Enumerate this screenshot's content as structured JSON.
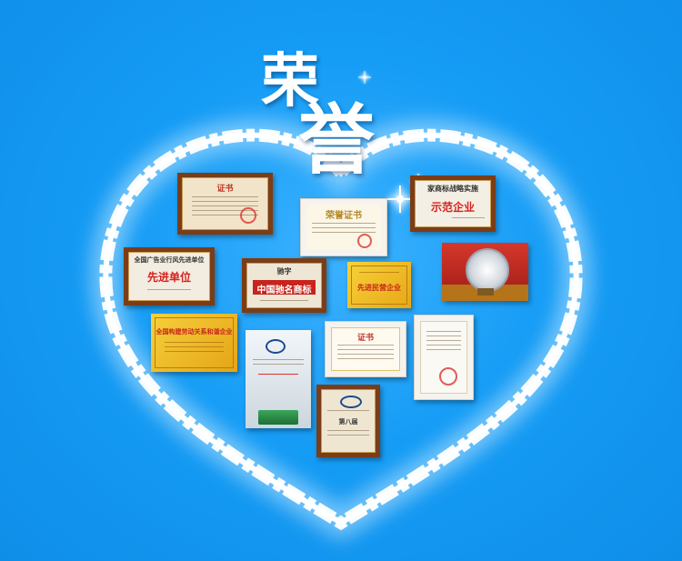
{
  "title": {
    "char1": "荣",
    "char2": "誉"
  },
  "colors": {
    "background": "#159cf5",
    "heart": "#ffffff",
    "wood": "#7b3d17",
    "red_text": "#d8201c"
  },
  "certificates": [
    {
      "text": "证书"
    },
    {
      "text": "荣誉证书"
    },
    {
      "text": "家商标战略实施",
      "subtext": "示范企业"
    },
    {
      "text": "全国广告业行风先进单位",
      "subtext": "先进单位"
    },
    {
      "text": "驰字",
      "subtext": "中国驰名商标"
    },
    {
      "text": "先进民营企业"
    },
    {
      "text": "全国构建劳动关系和谐企业"
    },
    {
      "text": "证书"
    },
    {
      "text": "第八届"
    }
  ]
}
